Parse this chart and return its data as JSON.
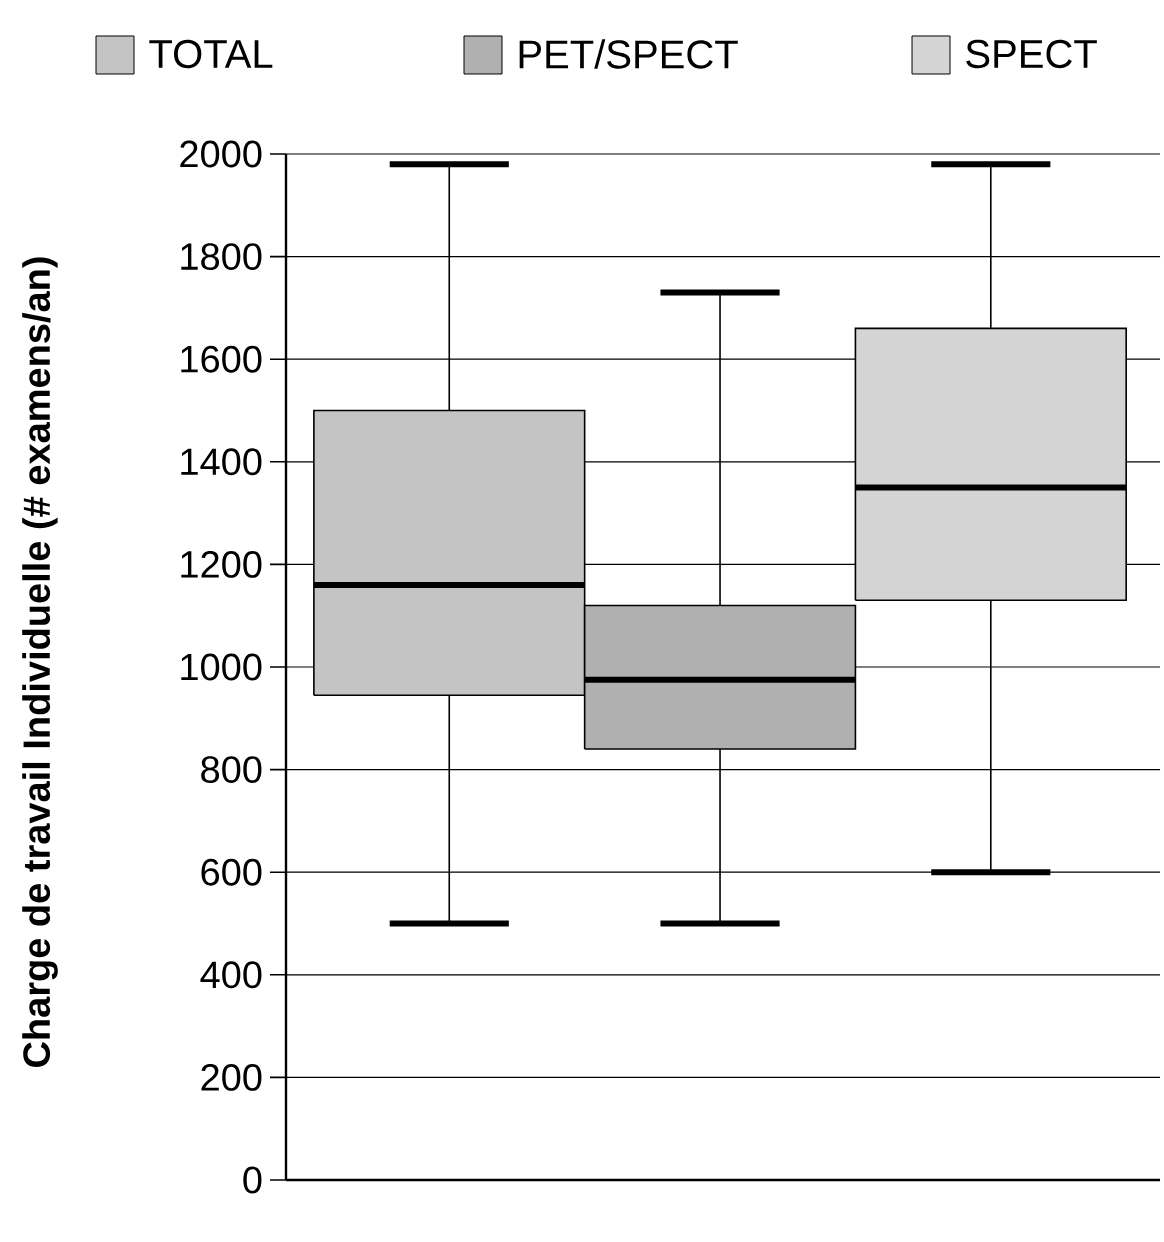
{
  "chart_data": {
    "type": "box",
    "ylabel": "Charge de travail Individuelle (# examens/an)",
    "categories": [
      null
    ],
    "series": [
      {
        "name": "TOTAL",
        "color": "#c4c4c4",
        "boxes": [
          {
            "low": 500,
            "q1": 945,
            "median": 1160,
            "q3": 1500,
            "high": 1980
          }
        ]
      },
      {
        "name": "PET/SPECT",
        "color": "#b0b0b0",
        "boxes": [
          {
            "low": 500,
            "q1": 840,
            "median": 975,
            "q3": 1120,
            "high": 1730
          }
        ]
      },
      {
        "name": "SPECT",
        "color": "#d4d4d4",
        "boxes": [
          {
            "low": 600,
            "q1": 1130,
            "median": 1350,
            "q3": 1660,
            "high": 1980
          }
        ]
      }
    ],
    "ylim": [
      0,
      2000
    ],
    "yticks": [
      0,
      200,
      400,
      600,
      800,
      1000,
      1200,
      1400,
      1600,
      1800,
      2000
    ],
    "grid": "y",
    "legend": "top"
  }
}
